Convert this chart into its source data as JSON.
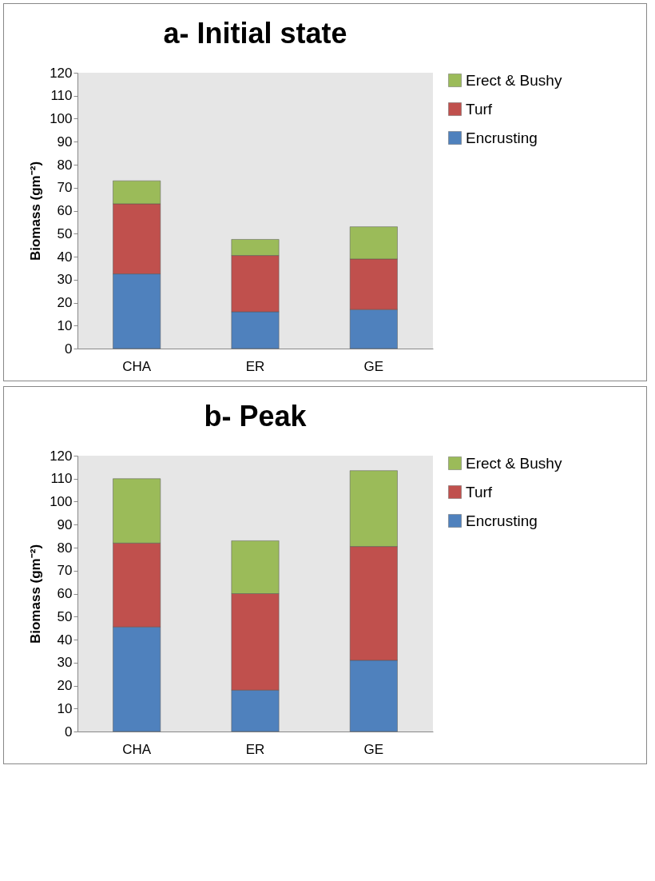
{
  "chart_data": [
    {
      "type": "bar",
      "title": "a- Initial state",
      "ylabel": "Biomass (gm⁻²)",
      "categories": [
        "CHA",
        "ER",
        "GE"
      ],
      "stacked": true,
      "ylim": [
        0,
        120
      ],
      "yticks": [
        0,
        10,
        20,
        30,
        40,
        50,
        60,
        70,
        80,
        90,
        100,
        110,
        120
      ],
      "grid": false,
      "legend": "right",
      "series": [
        {
          "name": "Encrusting",
          "color": "#4f81bd",
          "values": [
            32.5,
            16,
            17
          ]
        },
        {
          "name": "Turf",
          "color": "#c0504d",
          "values": [
            30.5,
            24.5,
            22
          ]
        },
        {
          "name": "Erect & Bushy",
          "color": "#9bbb59",
          "values": [
            10,
            7,
            14
          ]
        }
      ]
    },
    {
      "type": "bar",
      "title": "b- Peak",
      "ylabel": "Biomass (gm⁻²)",
      "categories": [
        "CHA",
        "ER",
        "GE"
      ],
      "stacked": true,
      "ylim": [
        0,
        120
      ],
      "yticks": [
        0,
        10,
        20,
        30,
        40,
        50,
        60,
        70,
        80,
        90,
        100,
        110,
        120
      ],
      "grid": false,
      "legend": "right",
      "series": [
        {
          "name": "Encrusting",
          "color": "#4f81bd",
          "values": [
            45.5,
            18,
            31
          ]
        },
        {
          "name": "Turf",
          "color": "#c0504d",
          "values": [
            36.5,
            42,
            49.5
          ]
        },
        {
          "name": "Erect & Bushy",
          "color": "#9bbb59",
          "values": [
            28,
            23,
            33
          ]
        }
      ]
    }
  ]
}
